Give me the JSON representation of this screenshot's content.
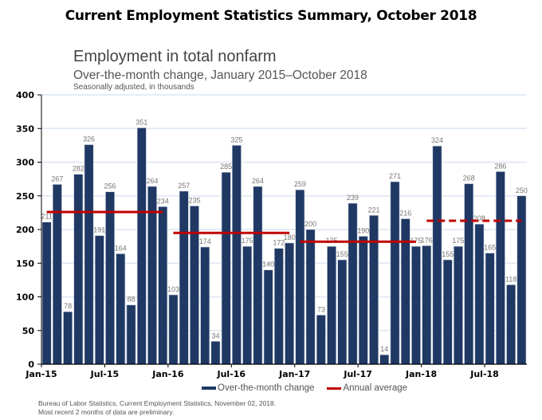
{
  "page_title": "Current Employment Statistics Summary, October 2018",
  "legend": {
    "bar_label": "Over-the-month change",
    "line_label": "Annual average"
  },
  "source": {
    "line1": "Bureau of Labor Statistics, Current Employment Statistics, November 02, 2018.",
    "line2": "Most recent 2 months of data are preliminary."
  },
  "colors": {
    "bar": "#1f3864",
    "average_line": "#c00000",
    "gridline": "#dce6f2"
  },
  "chart_data": {
    "type": "bar",
    "title": "Employment in total nonfarm",
    "subtitle": "Over-the-month change, January 2015–October 2018",
    "note": "Seasonally adjusted, in thousands",
    "xlabel": "",
    "ylabel": "",
    "ylim": [
      0,
      400
    ],
    "yticks": [
      0,
      50,
      100,
      150,
      200,
      250,
      300,
      350,
      400
    ],
    "grid": true,
    "legend_position": "bottom",
    "x_tick_labels": [
      {
        "index": 0,
        "label": "Jan-15"
      },
      {
        "index": 6,
        "label": "Jul-15"
      },
      {
        "index": 12,
        "label": "Jan-16"
      },
      {
        "index": 18,
        "label": "Jul-16"
      },
      {
        "index": 24,
        "label": "Jan-17"
      },
      {
        "index": 30,
        "label": "Jul-17"
      },
      {
        "index": 36,
        "label": "Jan-18"
      },
      {
        "index": 42,
        "label": "Jul-18"
      }
    ],
    "categories": [
      "Jan-15",
      "Feb-15",
      "Mar-15",
      "Apr-15",
      "May-15",
      "Jun-15",
      "Jul-15",
      "Aug-15",
      "Sep-15",
      "Oct-15",
      "Nov-15",
      "Dec-15",
      "Jan-16",
      "Feb-16",
      "Mar-16",
      "Apr-16",
      "May-16",
      "Jun-16",
      "Jul-16",
      "Aug-16",
      "Sep-16",
      "Oct-16",
      "Nov-16",
      "Dec-16",
      "Jan-17",
      "Feb-17",
      "Mar-17",
      "Apr-17",
      "May-17",
      "Jun-17",
      "Jul-17",
      "Aug-17",
      "Sep-17",
      "Oct-17",
      "Nov-17",
      "Dec-17",
      "Jan-18",
      "Feb-18",
      "Mar-18",
      "Apr-18",
      "May-18",
      "Jun-18",
      "Jul-18",
      "Aug-18",
      "Sep-18",
      "Oct-18"
    ],
    "series": [
      {
        "name": "Over-the-month change",
        "type": "bar",
        "values": [
          211,
          267,
          78,
          282,
          326,
          191,
          256,
          164,
          88,
          351,
          264,
          234,
          103,
          257,
          235,
          174,
          34,
          285,
          325,
          175,
          264,
          140,
          172,
          180,
          259,
          200,
          73,
          175,
          155,
          239,
          190,
          221,
          14,
          271,
          216,
          175,
          176,
          324,
          155,
          175,
          268,
          208,
          165,
          286,
          118,
          250
        ]
      },
      {
        "name": "Annual average",
        "type": "line",
        "segments": [
          {
            "year": "2015",
            "start_index": 0,
            "end_index": 11,
            "value": 226,
            "dashed": false
          },
          {
            "year": "2016",
            "start_index": 12,
            "end_index": 23,
            "value": 195,
            "dashed": false
          },
          {
            "year": "2017",
            "start_index": 24,
            "end_index": 35,
            "value": 182,
            "dashed": false
          },
          {
            "year": "2018",
            "start_index": 36,
            "end_index": 45,
            "value": 213,
            "dashed": true
          }
        ]
      }
    ]
  }
}
